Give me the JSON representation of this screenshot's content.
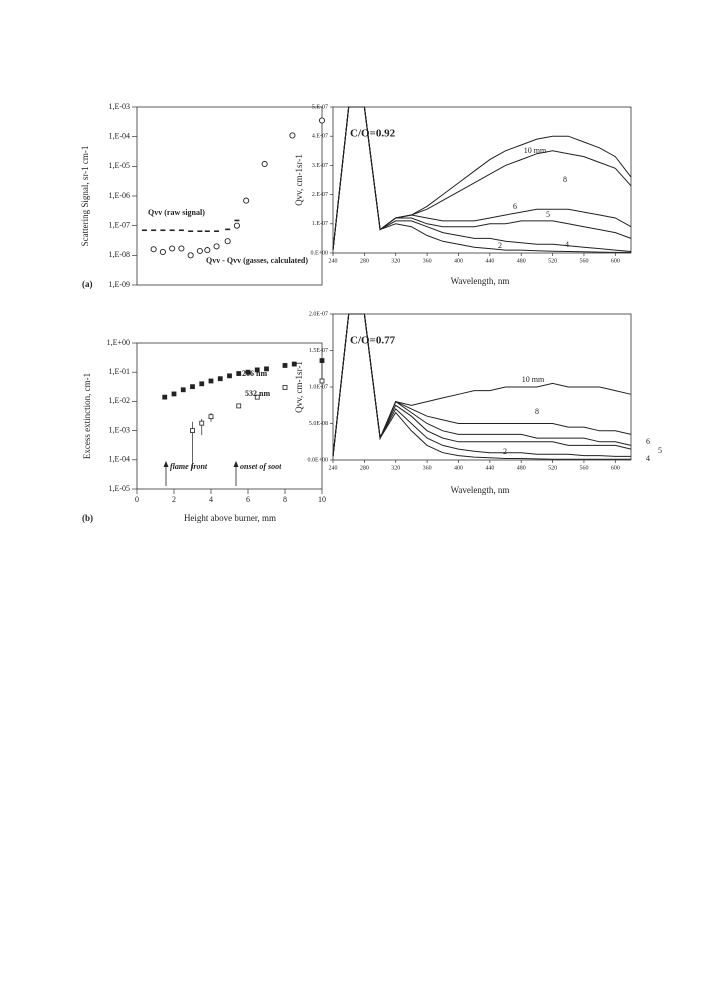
{
  "chart_data": [
    {
      "type": "scatter",
      "ylabel": "Scattering Signal, sr-1 cm-1",
      "panel_label": "(a)",
      "xlim": [
        0,
        10
      ],
      "ylim": [
        1e-09,
        0.001
      ],
      "log_y": true,
      "yticks": [
        {
          "value": 1e-09,
          "label": "1,E-09"
        },
        {
          "value": 1e-08,
          "label": "1,E-08"
        },
        {
          "value": 1e-07,
          "label": "1,E-07"
        },
        {
          "value": 1e-06,
          "label": "1,E-06"
        },
        {
          "value": 1e-05,
          "label": "1,E-05"
        },
        {
          "value": 0.0001,
          "label": "1,E-04"
        },
        {
          "value": 0.001,
          "label": "1,E-03"
        }
      ],
      "series": [
        {
          "name": "Qvv (raw signal)",
          "marker": "dash",
          "color": "#222",
          "x": [
            0.4,
            0.9,
            1.4,
            1.9,
            2.4,
            2.9,
            3.4,
            3.8,
            4.3,
            4.9,
            5.4,
            5.9,
            6.9,
            8.4,
            10
          ],
          "values": [
            7e-08,
            7e-08,
            7e-08,
            7e-08,
            7e-08,
            6.5e-08,
            6.5e-08,
            6.5e-08,
            6.5e-08,
            7.5e-08,
            1.5e-07,
            7e-07,
            1.2e-05,
            0.00011,
            0.00035
          ]
        },
        {
          "name": "Qvv - Qvv (gasses, calculated)",
          "marker": "circle",
          "color": "#222",
          "x": [
            0.9,
            1.4,
            1.9,
            2.4,
            2.9,
            3.4,
            3.8,
            4.3,
            4.9,
            5.4,
            5.9,
            6.9,
            8.4,
            10
          ],
          "values": [
            1.6e-08,
            1.3e-08,
            1.7e-08,
            1.7e-08,
            1e-08,
            1.4e-08,
            1.5e-08,
            2e-08,
            3e-08,
            1e-07,
            7e-07,
            1.2e-05,
            0.00011,
            0.00035
          ]
        }
      ]
    },
    {
      "type": "scatter",
      "ylabel": "Excess extinction, cm-1",
      "xlabel": "Height above burner, mm",
      "panel_label": "(b)",
      "xlim": [
        0,
        10
      ],
      "xticks": [
        0,
        2,
        4,
        6,
        8,
        10
      ],
      "ylim": [
        1e-05,
        1
      ],
      "log_y": true,
      "yticks": [
        {
          "value": 1e-05,
          "label": "1,E-05"
        },
        {
          "value": 0.0001,
          "label": "1,E-04"
        },
        {
          "value": 0.001,
          "label": "1,E-03"
        },
        {
          "value": 0.01,
          "label": "1,E-02"
        },
        {
          "value": 0.1,
          "label": "1,E-01"
        },
        {
          "value": 1,
          "label": "1,E+00"
        }
      ],
      "annotations": [
        "flame front",
        "onset of soot"
      ],
      "series": [
        {
          "name": "266 nm",
          "marker": "square",
          "color": "#222",
          "x": [
            1.5,
            2,
            2.5,
            3,
            3.5,
            4,
            4.5,
            5,
            5.5,
            6,
            6.5,
            7,
            8,
            8.5,
            10
          ],
          "values": [
            0.014,
            0.018,
            0.025,
            0.032,
            0.04,
            0.05,
            0.06,
            0.075,
            0.09,
            0.1,
            0.12,
            0.13,
            0.17,
            0.19,
            0.25
          ]
        },
        {
          "name": "532 nm",
          "marker": "square-open",
          "color": "#222",
          "x": [
            3,
            3.5,
            4,
            5.5,
            6.5,
            8,
            10
          ],
          "values": [
            0.001,
            0.0018,
            0.003,
            0.007,
            0.014,
            0.03,
            0.05
          ],
          "error_low": [
            5e-05,
            0.0007,
            0.002,
            0.006,
            0.012,
            0.028,
            0.045
          ],
          "error_high": [
            0.002,
            0.0025,
            0.004,
            0.008,
            0.015,
            0.032,
            0.25
          ]
        }
      ]
    },
    {
      "type": "line",
      "title": "C/O=0.92",
      "ylabel": "Qvv, cm-1sr-1",
      "xlabel": "Wavelength, nm",
      "x": [
        240,
        260,
        280,
        300,
        320,
        340,
        360,
        380,
        400,
        420,
        440,
        460,
        480,
        500,
        520,
        540,
        560,
        580,
        600,
        620
      ],
      "xlim": [
        240,
        620
      ],
      "xticks": [
        240,
        280,
        320,
        360,
        400,
        440,
        480,
        520,
        560,
        600
      ],
      "ylim": [
        0,
        5e-07
      ],
      "yticks": [
        {
          "value": 0,
          "label": "0.E+00"
        },
        {
          "value": 1e-07,
          "label": "1.E-07"
        },
        {
          "value": 2e-07,
          "label": "2.E-07"
        },
        {
          "value": 3e-07,
          "label": "3.E-07"
        },
        {
          "value": 4e-07,
          "label": "4.E-07"
        },
        {
          "value": 5e-07,
          "label": "5.E-07"
        }
      ],
      "series": [
        {
          "name": "10 mm",
          "color": "#222",
          "values": [
            1e-08,
            5e-07,
            5e-07,
            8e-08,
            1.2e-07,
            1.3e-07,
            1.6e-07,
            2e-07,
            2.4e-07,
            2.8e-07,
            3.2e-07,
            3.5e-07,
            3.7e-07,
            3.9e-07,
            4e-07,
            4e-07,
            3.8e-07,
            3.6e-07,
            3.3e-07,
            2.6e-07
          ]
        },
        {
          "name": "8",
          "color": "#222",
          "values": [
            1e-08,
            5e-07,
            5e-07,
            8e-08,
            1.2e-07,
            1.3e-07,
            1.5e-07,
            1.8e-07,
            2.1e-07,
            2.4e-07,
            2.7e-07,
            3e-07,
            3.2e-07,
            3.4e-07,
            3.5e-07,
            3.4e-07,
            3.3e-07,
            3.1e-07,
            2.9e-07,
            2.3e-07
          ]
        },
        {
          "name": "6",
          "color": "#222",
          "values": [
            1e-08,
            5e-07,
            5e-07,
            8e-08,
            1.2e-07,
            1.3e-07,
            1.2e-07,
            1.1e-07,
            1.1e-07,
            1.1e-07,
            1.2e-07,
            1.3e-07,
            1.4e-07,
            1.5e-07,
            1.5e-07,
            1.5e-07,
            1.4e-07,
            1.3e-07,
            1.2e-07,
            9e-08
          ]
        },
        {
          "name": "5",
          "color": "#222",
          "values": [
            1e-08,
            5e-07,
            5e-07,
            8e-08,
            1.2e-07,
            1.2e-07,
            1e-07,
            9e-08,
            9e-08,
            9e-08,
            1e-07,
            1e-07,
            1.1e-07,
            1.1e-07,
            1.1e-07,
            1e-07,
            9e-08,
            8e-08,
            7e-08,
            5e-08
          ]
        },
        {
          "name": "4",
          "color": "#222",
          "values": [
            1e-08,
            5e-07,
            5e-07,
            8e-08,
            1.1e-07,
            1.1e-07,
            9e-08,
            7e-08,
            6e-08,
            5e-08,
            5e-08,
            4e-08,
            3.5e-08,
            3e-08,
            3e-08,
            2.5e-08,
            2e-08,
            1.5e-08,
            1e-08,
            5e-09
          ]
        },
        {
          "name": "2",
          "color": "#222",
          "values": [
            1e-08,
            5e-07,
            5e-07,
            8e-08,
            1e-07,
            9e-08,
            6e-08,
            4e-08,
            3e-08,
            2e-08,
            1.5e-08,
            1e-08,
            1e-08,
            8e-09,
            6e-09,
            5e-09,
            4e-09,
            3e-09,
            2e-09,
            2e-09
          ]
        }
      ]
    },
    {
      "type": "line",
      "title": "C/O=0.77",
      "ylabel": "Qvv, cm-1sr-1",
      "xlabel": "Wavelength, nm",
      "x": [
        240,
        260,
        280,
        300,
        320,
        340,
        360,
        380,
        400,
        420,
        440,
        460,
        480,
        500,
        520,
        540,
        560,
        580,
        600,
        620
      ],
      "xlim": [
        240,
        620
      ],
      "xticks": [
        240,
        280,
        320,
        360,
        400,
        440,
        480,
        520,
        560,
        600
      ],
      "ylim": [
        0,
        2e-07
      ],
      "yticks": [
        {
          "value": 0,
          "label": "0.0E+00"
        },
        {
          "value": 5e-08,
          "label": "5.0E-08"
        },
        {
          "value": 1e-07,
          "label": "1.0E-07"
        },
        {
          "value": 1.5e-07,
          "label": "1.5E-07"
        },
        {
          "value": 2e-07,
          "label": "2.0E-07"
        }
      ],
      "series": [
        {
          "name": "10 mm",
          "color": "#222",
          "values": [
            5e-09,
            2e-07,
            2e-07,
            3e-08,
            8e-08,
            7.5e-08,
            8e-08,
            8.5e-08,
            9e-08,
            9.5e-08,
            9.5e-08,
            1e-07,
            1e-07,
            1e-07,
            1.05e-07,
            1e-07,
            1e-07,
            1e-07,
            9.5e-08,
            9e-08
          ]
        },
        {
          "name": "8",
          "color": "#222",
          "values": [
            5e-09,
            2e-07,
            2e-07,
            3e-08,
            8e-08,
            7e-08,
            6e-08,
            5.5e-08,
            5e-08,
            5e-08,
            5e-08,
            5e-08,
            5e-08,
            5e-08,
            5e-08,
            4.5e-08,
            4.5e-08,
            4e-08,
            4e-08,
            3.5e-08
          ]
        },
        {
          "name": "6",
          "color": "#222",
          "values": [
            5e-09,
            2e-07,
            2e-07,
            3e-08,
            8e-08,
            6.5e-08,
            5e-08,
            4e-08,
            3.5e-08,
            3.5e-08,
            3.5e-08,
            3.5e-08,
            3.5e-08,
            3e-08,
            3e-08,
            3e-08,
            3e-08,
            2.5e-08,
            2.5e-08,
            2e-08
          ]
        },
        {
          "name": "5",
          "color": "#222",
          "values": [
            5e-09,
            2e-07,
            2e-07,
            3e-08,
            7.5e-08,
            6e-08,
            4e-08,
            3e-08,
            2.5e-08,
            2.5e-08,
            2.5e-08,
            2.5e-08,
            2.5e-08,
            2.5e-08,
            2.5e-08,
            2e-08,
            2e-08,
            2e-08,
            2e-08,
            1.5e-08
          ]
        },
        {
          "name": "4",
          "color": "#222",
          "values": [
            5e-09,
            2e-07,
            2e-07,
            3e-08,
            7e-08,
            5e-08,
            3e-08,
            2e-08,
            1.5e-08,
            1.2e-08,
            1e-08,
            1e-08,
            1e-08,
            8e-09,
            8e-09,
            8e-09,
            6e-09,
            6e-09,
            5e-09,
            5e-09
          ]
        },
        {
          "name": "2",
          "color": "#222",
          "values": [
            5e-09,
            2e-07,
            2e-07,
            3e-08,
            6.5e-08,
            4e-08,
            2e-08,
            1e-08,
            6e-09,
            4e-09,
            3e-09,
            2e-09,
            2e-09,
            1.5e-09,
            1e-09,
            1e-09,
            1e-09,
            1e-09,
            1e-09,
            1e-09
          ]
        }
      ]
    }
  ]
}
